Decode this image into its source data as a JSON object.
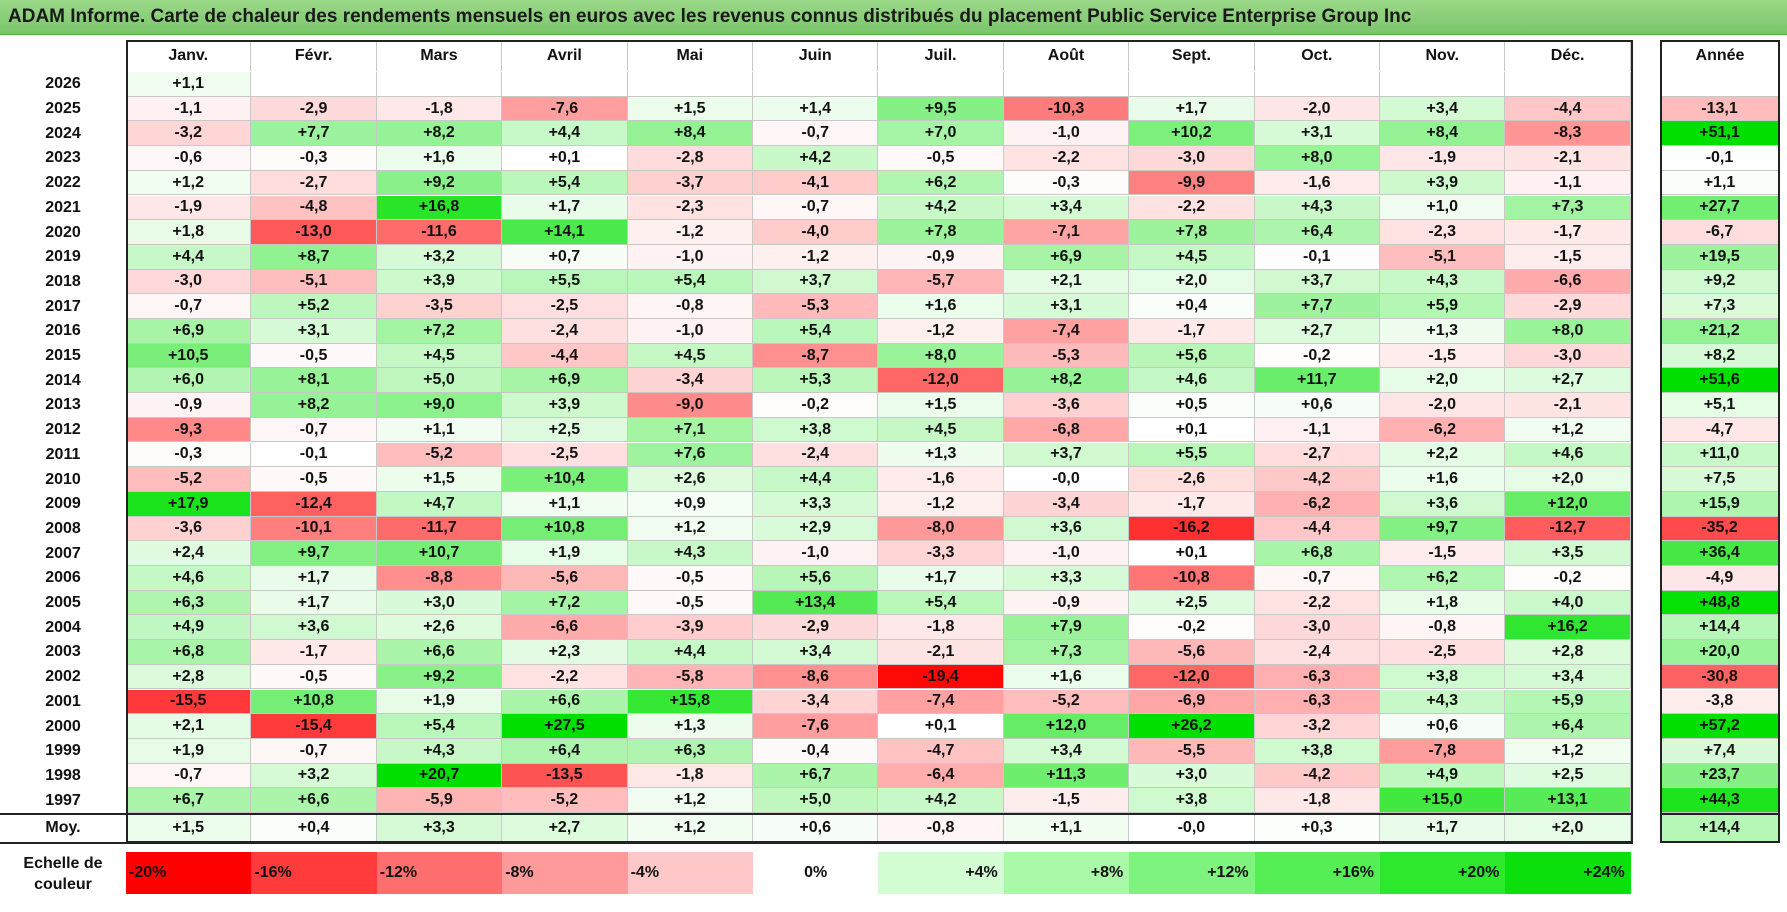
{
  "title": "ADAM Informe. Carte de chaleur des rendements mensuels en euros avec les revenus connus distribués du placement Public Service Enterprise Group Inc",
  "chart_data": {
    "type": "heatmap",
    "title": "ADAM Informe. Carte de chaleur des rendements mensuels en euros avec les revenus connus distribués du placement Public Service Enterprise Group Inc",
    "months": [
      "Janv.",
      "Févr.",
      "Mars",
      "Avril",
      "Mai",
      "Juin",
      "Juil.",
      "Août",
      "Sept.",
      "Oct.",
      "Nov.",
      "Déc."
    ],
    "year_header": "Année",
    "average_label": "Moy.",
    "rows": [
      {
        "year": "2026",
        "values": [
          "+1,1",
          "",
          "",
          "",
          "",
          "",
          "",
          "",
          "",
          "",
          "",
          ""
        ],
        "annual": ""
      },
      {
        "year": "2025",
        "values": [
          "-1,1",
          "-2,9",
          "-1,8",
          "-7,6",
          "+1,5",
          "+1,4",
          "+9,5",
          "-10,3",
          "+1,7",
          "-2,0",
          "+3,4",
          "-4,4"
        ],
        "annual": "-13,1"
      },
      {
        "year": "2024",
        "values": [
          "-3,2",
          "+7,7",
          "+8,2",
          "+4,4",
          "+8,4",
          "-0,7",
          "+7,0",
          "-1,0",
          "+10,2",
          "+3,1",
          "+8,4",
          "-8,3"
        ],
        "annual": "+51,1"
      },
      {
        "year": "2023",
        "values": [
          "-0,6",
          "-0,3",
          "+1,6",
          "+0,1",
          "-2,8",
          "+4,2",
          "-0,5",
          "-2,2",
          "-3,0",
          "+8,0",
          "-1,9",
          "-2,1"
        ],
        "annual": "-0,1"
      },
      {
        "year": "2022",
        "values": [
          "+1,2",
          "-2,7",
          "+9,2",
          "+5,4",
          "-3,7",
          "-4,1",
          "+6,2",
          "-0,3",
          "-9,9",
          "-1,6",
          "+3,9",
          "-1,1"
        ],
        "annual": "+1,1"
      },
      {
        "year": "2021",
        "values": [
          "-1,9",
          "-4,8",
          "+16,8",
          "+1,7",
          "-2,3",
          "-0,7",
          "+4,2",
          "+3,4",
          "-2,2",
          "+4,3",
          "+1,0",
          "+7,3"
        ],
        "annual": "+27,7"
      },
      {
        "year": "2020",
        "values": [
          "+1,8",
          "-13,0",
          "-11,6",
          "+14,1",
          "-1,2",
          "-4,0",
          "+7,8",
          "-7,1",
          "+7,8",
          "+6,4",
          "-2,3",
          "-1,7"
        ],
        "annual": "-6,7"
      },
      {
        "year": "2019",
        "values": [
          "+4,4",
          "+8,7",
          "+3,2",
          "+0,7",
          "-1,0",
          "-1,2",
          "-0,9",
          "+6,9",
          "+4,5",
          "-0,1",
          "-5,1",
          "-1,5"
        ],
        "annual": "+19,5"
      },
      {
        "year": "2018",
        "values": [
          "-3,0",
          "-5,1",
          "+3,9",
          "+5,5",
          "+5,4",
          "+3,7",
          "-5,7",
          "+2,1",
          "+2,0",
          "+3,7",
          "+4,3",
          "-6,6"
        ],
        "annual": "+9,2"
      },
      {
        "year": "2017",
        "values": [
          "-0,7",
          "+5,2",
          "-3,5",
          "-2,5",
          "-0,8",
          "-5,3",
          "+1,6",
          "+3,1",
          "+0,4",
          "+7,7",
          "+5,9",
          "-2,9"
        ],
        "annual": "+7,3"
      },
      {
        "year": "2016",
        "values": [
          "+6,9",
          "+3,1",
          "+7,2",
          "-2,4",
          "-1,0",
          "+5,4",
          "-1,2",
          "-7,4",
          "-1,7",
          "+2,7",
          "+1,3",
          "+8,0"
        ],
        "annual": "+21,2"
      },
      {
        "year": "2015",
        "values": [
          "+10,5",
          "-0,5",
          "+4,5",
          "-4,4",
          "+4,5",
          "-8,7",
          "+8,0",
          "-5,3",
          "+5,6",
          "-0,2",
          "-1,5",
          "-3,0"
        ],
        "annual": "+8,2"
      },
      {
        "year": "2014",
        "values": [
          "+6,0",
          "+8,1",
          "+5,0",
          "+6,9",
          "-3,4",
          "+5,3",
          "-12,0",
          "+8,2",
          "+4,6",
          "+11,7",
          "+2,0",
          "+2,7"
        ],
        "annual": "+51,6"
      },
      {
        "year": "2013",
        "values": [
          "-0,9",
          "+8,2",
          "+9,0",
          "+3,9",
          "-9,0",
          "-0,2",
          "+1,5",
          "-3,6",
          "+0,5",
          "+0,6",
          "-2,0",
          "-2,1"
        ],
        "annual": "+5,1"
      },
      {
        "year": "2012",
        "values": [
          "-9,3",
          "-0,7",
          "+1,1",
          "+2,5",
          "+7,1",
          "+3,8",
          "+4,5",
          "-6,8",
          "+0,1",
          "-1,1",
          "-6,2",
          "+1,2"
        ],
        "annual": "-4,7"
      },
      {
        "year": "2011",
        "values": [
          "-0,3",
          "-0,1",
          "-5,2",
          "-2,5",
          "+7,6",
          "-2,4",
          "+1,3",
          "+3,7",
          "+5,5",
          "-2,7",
          "+2,2",
          "+4,6"
        ],
        "annual": "+11,0"
      },
      {
        "year": "2010",
        "values": [
          "-5,2",
          "-0,5",
          "+1,5",
          "+10,4",
          "+2,6",
          "+4,4",
          "-1,6",
          "-0,0",
          "-2,6",
          "-4,2",
          "+1,6",
          "+2,0"
        ],
        "annual": "+7,5"
      },
      {
        "year": "2009",
        "values": [
          "+17,9",
          "-12,4",
          "+4,7",
          "+1,1",
          "+0,9",
          "+3,3",
          "-1,2",
          "-3,4",
          "-1,7",
          "-6,2",
          "+3,6",
          "+12,0"
        ],
        "annual": "+15,9"
      },
      {
        "year": "2008",
        "values": [
          "-3,6",
          "-10,1",
          "-11,7",
          "+10,8",
          "+1,2",
          "+2,9",
          "-8,0",
          "+3,6",
          "-16,2",
          "-4,4",
          "+9,7",
          "-12,7"
        ],
        "annual": "-35,2"
      },
      {
        "year": "2007",
        "values": [
          "+2,4",
          "+9,7",
          "+10,7",
          "+1,9",
          "+4,3",
          "-1,0",
          "-3,3",
          "-1,0",
          "+0,1",
          "+6,8",
          "-1,5",
          "+3,5"
        ],
        "annual": "+36,4"
      },
      {
        "year": "2006",
        "values": [
          "+4,6",
          "+1,7",
          "-8,8",
          "-5,6",
          "-0,5",
          "+5,6",
          "+1,7",
          "+3,3",
          "-10,8",
          "-0,7",
          "+6,2",
          "-0,2"
        ],
        "annual": "-4,9"
      },
      {
        "year": "2005",
        "values": [
          "+6,3",
          "+1,7",
          "+3,0",
          "+7,2",
          "-0,5",
          "+13,4",
          "+5,4",
          "-0,9",
          "+2,5",
          "-2,2",
          "+1,8",
          "+4,0"
        ],
        "annual": "+48,8"
      },
      {
        "year": "2004",
        "values": [
          "+4,9",
          "+3,6",
          "+2,6",
          "-6,6",
          "-3,9",
          "-2,9",
          "-1,8",
          "+7,9",
          "-0,2",
          "-3,0",
          "-0,8",
          "+16,2"
        ],
        "annual": "+14,4"
      },
      {
        "year": "2003",
        "values": [
          "+6,8",
          "-1,7",
          "+6,6",
          "+2,3",
          "+4,4",
          "+3,4",
          "-2,1",
          "+7,3",
          "-5,6",
          "-2,4",
          "-2,5",
          "+2,8"
        ],
        "annual": "+20,0"
      },
      {
        "year": "2002",
        "values": [
          "+2,8",
          "-0,5",
          "+9,2",
          "-2,2",
          "-5,8",
          "-8,6",
          "-19,4",
          "+1,6",
          "-12,0",
          "-6,3",
          "+3,8",
          "+3,4"
        ],
        "annual": "-30,8"
      },
      {
        "year": "2001",
        "values": [
          "-15,5",
          "+10,8",
          "+1,9",
          "+6,6",
          "+15,8",
          "-3,4",
          "-7,4",
          "-5,2",
          "-6,9",
          "-6,3",
          "+4,3",
          "+5,9"
        ],
        "annual": "-3,8"
      },
      {
        "year": "2000",
        "values": [
          "+2,1",
          "-15,4",
          "+5,4",
          "+27,5",
          "+1,3",
          "-7,6",
          "+0,1",
          "+12,0",
          "+26,2",
          "-3,2",
          "+0,6",
          "+6,4"
        ],
        "annual": "+57,2"
      },
      {
        "year": "1999",
        "values": [
          "+1,9",
          "-0,7",
          "+4,3",
          "+6,4",
          "+6,3",
          "-0,4",
          "-4,7",
          "+3,4",
          "-5,5",
          "+3,8",
          "-7,8",
          "+1,2"
        ],
        "annual": "+7,4"
      },
      {
        "year": "1998",
        "values": [
          "-0,7",
          "+3,2",
          "+20,7",
          "-13,5",
          "-1,8",
          "+6,7",
          "-6,4",
          "+11,3",
          "+3,0",
          "-4,2",
          "+4,9",
          "+2,5"
        ],
        "annual": "+23,7"
      },
      {
        "year": "1997",
        "values": [
          "+6,7",
          "+6,6",
          "-5,9",
          "-5,2",
          "+1,2",
          "+5,0",
          "+4,2",
          "-1,5",
          "+3,8",
          "-1,8",
          "+15,0",
          "+13,1"
        ],
        "annual": "+44,3"
      }
    ],
    "average": {
      "values": [
        "+1,5",
        "+0,4",
        "+3,3",
        "+2,7",
        "+1,2",
        "+0,6",
        "-0,8",
        "+1,1",
        "-0,0",
        "+0,3",
        "+1,7",
        "+2,0"
      ],
      "annual": "+14,4"
    },
    "color_scale": {
      "label_line1": "Echelle de",
      "label_line2": "couleur",
      "stops": [
        "-20%",
        "-16%",
        "-12%",
        "-8%",
        "-4%",
        "0%",
        "+4%",
        "+8%",
        "+12%",
        "+16%",
        "+20%",
        "+24%"
      ],
      "colors": [
        "#ff0000",
        "#ff3b3b",
        "#ff6e6e",
        "#ff9a9a",
        "#ffc8c8",
        "#ffffff",
        "#d3fdd3",
        "#a9f9a9",
        "#7ef47e",
        "#55ee55",
        "#2de82d",
        "#0ce00c"
      ]
    },
    "colors": {
      "positive_max": "#00e000",
      "negative_max": "#ff0000",
      "neutral": "#ffffff",
      "title_bg": "#7ac56a"
    }
  }
}
